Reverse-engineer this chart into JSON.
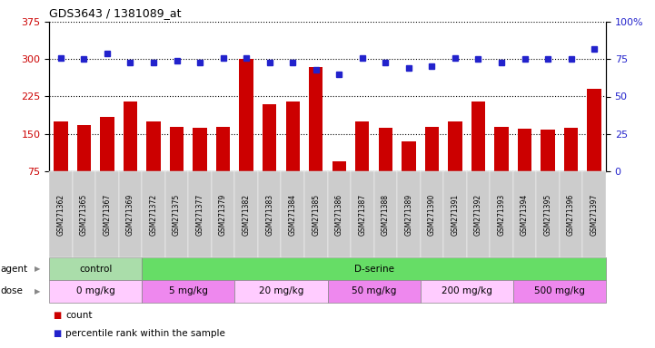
{
  "title": "GDS3643 / 1381089_at",
  "samples": [
    "GSM271362",
    "GSM271365",
    "GSM271367",
    "GSM271369",
    "GSM271372",
    "GSM271375",
    "GSM271377",
    "GSM271379",
    "GSM271382",
    "GSM271383",
    "GSM271384",
    "GSM271385",
    "GSM271386",
    "GSM271387",
    "GSM271388",
    "GSM271389",
    "GSM271390",
    "GSM271391",
    "GSM271392",
    "GSM271393",
    "GSM271394",
    "GSM271395",
    "GSM271396",
    "GSM271397"
  ],
  "counts": [
    175,
    168,
    185,
    215,
    175,
    165,
    162,
    165,
    300,
    210,
    215,
    285,
    95,
    175,
    162,
    135,
    165,
    175,
    215,
    165,
    160,
    158,
    162,
    240
  ],
  "percentile": [
    76,
    75,
    79,
    73,
    73,
    74,
    73,
    76,
    76,
    73,
    73,
    68,
    65,
    76,
    73,
    69,
    70,
    76,
    75,
    73,
    75,
    75,
    75,
    82
  ],
  "ylim_left": [
    75,
    375
  ],
  "ylim_right": [
    0,
    100
  ],
  "yticks_left": [
    75,
    150,
    225,
    300,
    375
  ],
  "yticks_right": [
    0,
    25,
    50,
    75,
    100
  ],
  "bar_color": "#cc0000",
  "dot_color": "#2222cc",
  "agent_groups": [
    {
      "label": "control",
      "start": 0,
      "end": 3,
      "color": "#aaddaa"
    },
    {
      "label": "D-serine",
      "start": 4,
      "end": 23,
      "color": "#66dd66"
    }
  ],
  "dose_groups": [
    {
      "label": "0 mg/kg",
      "start": 0,
      "end": 3,
      "color": "#ffccff"
    },
    {
      "label": "5 mg/kg",
      "start": 4,
      "end": 7,
      "color": "#ee88ee"
    },
    {
      "label": "20 mg/kg",
      "start": 8,
      "end": 11,
      "color": "#ffccff"
    },
    {
      "label": "50 mg/kg",
      "start": 12,
      "end": 15,
      "color": "#ee88ee"
    },
    {
      "label": "200 mg/kg",
      "start": 16,
      "end": 19,
      "color": "#ffccff"
    },
    {
      "label": "500 mg/kg",
      "start": 20,
      "end": 23,
      "color": "#ee88ee"
    }
  ],
  "tick_bg_color": "#cccccc",
  "grid_color": "#000000",
  "grid_style": ":",
  "grid_lw": 0.8
}
